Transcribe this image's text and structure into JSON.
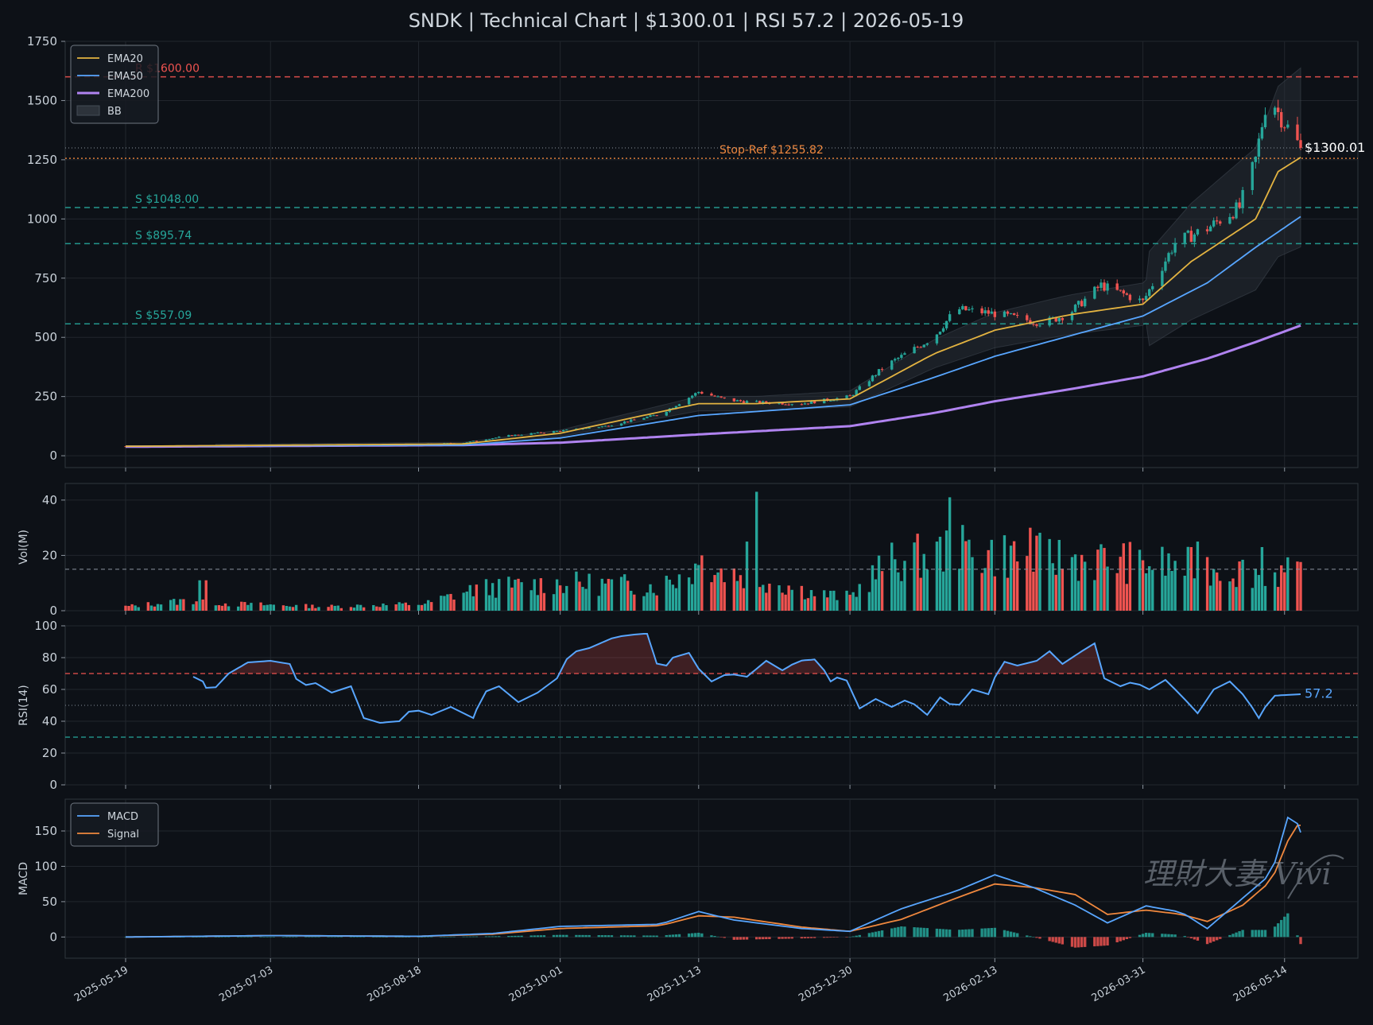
{
  "title": "SNDK | Technical Chart | $1300.01 | RSI 57.2 | 2026-05-19",
  "watermark": "理財大妻 Vivi",
  "colors": {
    "background": "#0d1117",
    "up": "#26a69a",
    "down": "#ef5350",
    "ema20": "#e3b341",
    "ema50": "#58a6ff",
    "ema200": "#b083f0",
    "macd": "#58a6ff",
    "signal": "#f0883e",
    "resistance": "#ef5350",
    "support": "#26a69a",
    "stop": "#f0883e"
  },
  "x_axis": {
    "start_date": "2025-05-19",
    "end_date": "2026-05-19",
    "tick_labels": [
      "2025-05-19",
      "2025-07-03",
      "2025-08-18",
      "2025-10-01",
      "2025-11-13",
      "2025-12-30",
      "2026-02-13",
      "2026-03-31",
      "2026-05-14"
    ]
  },
  "chart_data": [
    {
      "type": "candlestick",
      "panel": "price",
      "ylim": [
        -50,
        1750
      ],
      "yticks": [
        0,
        250,
        500,
        750,
        1000,
        1250,
        1500,
        1750
      ],
      "legend": [
        "EMA20",
        "EMA50",
        "EMA200",
        "BB"
      ],
      "legend_position": "top-left",
      "last_price_label": "$1300.01",
      "last_price": 1300.01,
      "levels": [
        {
          "label": "R $1600.00",
          "value": 1600.0,
          "kind": "resistance"
        },
        {
          "label": "Stop-Ref $1255.82",
          "value": 1255.82,
          "kind": "stop"
        },
        {
          "label": "S $1048.00",
          "value": 1048.0,
          "kind": "support"
        },
        {
          "label": "S $895.74",
          "value": 895.74,
          "kind": "support"
        },
        {
          "label": "S $557.09",
          "value": 557.09,
          "kind": "support"
        }
      ],
      "price_anchors": [
        [
          "2025-05-19",
          40
        ],
        [
          "2025-06-20",
          42
        ],
        [
          "2025-07-20",
          43
        ],
        [
          "2025-08-10",
          45
        ],
        [
          "2025-09-01",
          55
        ],
        [
          "2025-09-15",
          85
        ],
        [
          "2025-10-01",
          105
        ],
        [
          "2025-10-15",
          125
        ],
        [
          "2025-11-01",
          175
        ],
        [
          "2025-11-13",
          270
        ],
        [
          "2025-11-22",
          235
        ],
        [
          "2025-12-01",
          225
        ],
        [
          "2025-12-15",
          220
        ],
        [
          "2025-12-30",
          250
        ],
        [
          "2026-01-10",
          380
        ],
        [
          "2026-01-25",
          500
        ],
        [
          "2026-02-01",
          620
        ],
        [
          "2026-02-13",
          600
        ],
        [
          "2026-02-28",
          560
        ],
        [
          "2026-03-08",
          600
        ],
        [
          "2026-03-18",
          720
        ],
        [
          "2026-03-31",
          650
        ],
        [
          "2026-04-10",
          900
        ],
        [
          "2026-04-20",
          960
        ],
        [
          "2026-04-30",
          1050
        ],
        [
          "2026-05-05",
          1250
        ],
        [
          "2026-05-09",
          1550
        ],
        [
          "2026-05-12",
          1450
        ],
        [
          "2026-05-19",
          1300
        ]
      ],
      "ema20_anchors": [
        [
          "2025-05-19",
          40
        ],
        [
          "2025-09-01",
          50
        ],
        [
          "2025-10-01",
          95
        ],
        [
          "2025-11-13",
          220
        ],
        [
          "2025-12-01",
          220
        ],
        [
          "2025-12-30",
          240
        ],
        [
          "2026-01-25",
          430
        ],
        [
          "2026-02-13",
          530
        ],
        [
          "2026-03-08",
          595
        ],
        [
          "2026-03-31",
          640
        ],
        [
          "2026-04-15",
          820
        ],
        [
          "2026-05-05",
          1000
        ],
        [
          "2026-05-12",
          1200
        ],
        [
          "2026-05-19",
          1260
        ]
      ],
      "ema50_anchors": [
        [
          "2025-05-19",
          40
        ],
        [
          "2025-09-01",
          45
        ],
        [
          "2025-10-01",
          75
        ],
        [
          "2025-11-13",
          170
        ],
        [
          "2025-12-15",
          200
        ],
        [
          "2025-12-30",
          215
        ],
        [
          "2026-01-25",
          330
        ],
        [
          "2026-02-13",
          420
        ],
        [
          "2026-03-08",
          505
        ],
        [
          "2026-03-31",
          590
        ],
        [
          "2026-04-20",
          730
        ],
        [
          "2026-05-05",
          880
        ],
        [
          "2026-05-19",
          1010
        ]
      ],
      "ema200_anchors": [
        [
          "2025-05-19",
          38
        ],
        [
          "2025-09-01",
          45
        ],
        [
          "2025-10-01",
          55
        ],
        [
          "2025-11-13",
          90
        ],
        [
          "2025-12-30",
          125
        ],
        [
          "2026-01-25",
          180
        ],
        [
          "2026-02-13",
          230
        ],
        [
          "2026-03-08",
          280
        ],
        [
          "2026-03-31",
          335
        ],
        [
          "2026-04-20",
          410
        ],
        [
          "2026-05-05",
          480
        ],
        [
          "2026-05-19",
          550
        ]
      ]
    },
    {
      "type": "bar",
      "panel": "volume",
      "ylabel": "Vol(M)",
      "ylim": [
        0,
        46
      ],
      "yticks": [
        0,
        20,
        40
      ],
      "avg_line": 15,
      "volume_anchors": [
        [
          "2025-05-19",
          1.5
        ],
        [
          "2025-06-10",
          4
        ],
        [
          "2025-06-20",
          2.5
        ],
        [
          "2025-07-20",
          1.5
        ],
        [
          "2025-08-20",
          2.5
        ],
        [
          "2025-09-05",
          8
        ],
        [
          "2025-10-01",
          10
        ],
        [
          "2025-11-01",
          9
        ],
        [
          "2025-11-13",
          16
        ],
        [
          "2025-12-01",
          12
        ],
        [
          "2025-12-20",
          6
        ],
        [
          "2025-12-30",
          5
        ],
        [
          "2026-01-10",
          17
        ],
        [
          "2026-02-01",
          22
        ],
        [
          "2026-02-20",
          20
        ],
        [
          "2026-03-20",
          18
        ],
        [
          "2026-04-15",
          16
        ],
        [
          "2026-05-19",
          13
        ]
      ],
      "spikes": [
        [
          "2025-06-11",
          11
        ],
        [
          "2025-06-13",
          11
        ],
        [
          "2025-11-14",
          20
        ],
        [
          "2025-11-28",
          25
        ],
        [
          "2025-12-01",
          43
        ],
        [
          "2026-01-04",
          24
        ],
        [
          "2026-01-30",
          41
        ],
        [
          "2026-02-03",
          31
        ],
        [
          "2026-02-24",
          30
        ],
        [
          "2026-04-17",
          25
        ],
        [
          "2026-05-07",
          23
        ]
      ]
    },
    {
      "type": "line",
      "panel": "rsi",
      "ylabel": "RSI(14)",
      "ylim": [
        0,
        100
      ],
      "yticks": [
        0,
        20,
        40,
        60,
        80,
        100
      ],
      "overbought": 70,
      "midline": 50,
      "oversold": 30,
      "last_label": "57.2",
      "last_value": 57.2,
      "rsi_anchors": [
        [
          "2025-06-08",
          69
        ],
        [
          "2025-06-12",
          65
        ],
        [
          "2025-06-14",
          57
        ],
        [
          "2025-06-20",
          70
        ],
        [
          "2025-06-26",
          77
        ],
        [
          "2025-07-03",
          78
        ],
        [
          "2025-07-09",
          76
        ],
        [
          "2025-07-12",
          62
        ],
        [
          "2025-07-17",
          64
        ],
        [
          "2025-07-22",
          58
        ],
        [
          "2025-07-28",
          62
        ],
        [
          "2025-08-01",
          42
        ],
        [
          "2025-08-06",
          39
        ],
        [
          "2025-08-12",
          40
        ],
        [
          "2025-08-16",
          48
        ],
        [
          "2025-08-22",
          44
        ],
        [
          "2025-08-28",
          49
        ],
        [
          "2025-09-04",
          42
        ],
        [
          "2025-09-07",
          58
        ],
        [
          "2025-09-12",
          62
        ],
        [
          "2025-09-18",
          52
        ],
        [
          "2025-09-24",
          58
        ],
        [
          "2025-09-30",
          67
        ],
        [
          "2025-10-04",
          83
        ],
        [
          "2025-10-10",
          86
        ],
        [
          "2025-10-18",
          93
        ],
        [
          "2025-10-26",
          95
        ],
        [
          "2025-10-28",
          95
        ],
        [
          "2025-11-01",
          70
        ],
        [
          "2025-11-05",
          80
        ],
        [
          "2025-11-10",
          83
        ],
        [
          "2025-11-13",
          73
        ],
        [
          "2025-11-17",
          65
        ],
        [
          "2025-11-22",
          70
        ],
        [
          "2025-11-28",
          68
        ],
        [
          "2025-12-04",
          78
        ],
        [
          "2025-12-09",
          72
        ],
        [
          "2025-12-14",
          78
        ],
        [
          "2025-12-20",
          79
        ],
        [
          "2025-12-24",
          65
        ],
        [
          "2025-12-28",
          70
        ],
        [
          "2026-01-02",
          48
        ],
        [
          "2026-01-07",
          54
        ],
        [
          "2026-01-12",
          49
        ],
        [
          "2026-01-17",
          54
        ],
        [
          "2026-01-23",
          44
        ],
        [
          "2026-01-27",
          55
        ],
        [
          "2026-02-01",
          48
        ],
        [
          "2026-02-06",
          60
        ],
        [
          "2026-02-11",
          57
        ],
        [
          "2026-02-15",
          78
        ],
        [
          "2026-02-20",
          75
        ],
        [
          "2026-02-26",
          78
        ],
        [
          "2026-03-02",
          84
        ],
        [
          "2026-03-06",
          76
        ],
        [
          "2026-03-12",
          84
        ],
        [
          "2026-03-16",
          89
        ],
        [
          "2026-03-19",
          67
        ],
        [
          "2026-03-24",
          62
        ],
        [
          "2026-03-28",
          65
        ],
        [
          "2026-04-02",
          60
        ],
        [
          "2026-04-07",
          66
        ],
        [
          "2026-04-12",
          56
        ],
        [
          "2026-04-17",
          45
        ],
        [
          "2026-04-22",
          60
        ],
        [
          "2026-04-27",
          65
        ],
        [
          "2026-05-02",
          55
        ],
        [
          "2026-05-06",
          42
        ],
        [
          "2026-05-10",
          56
        ],
        [
          "2026-05-19",
          57
        ]
      ]
    },
    {
      "type": "line",
      "panel": "macd",
      "ylabel": "MACD",
      "ylim": [
        -30,
        195
      ],
      "yticks": [
        0,
        50,
        100,
        150
      ],
      "legend": [
        "MACD",
        "Signal"
      ],
      "legend_position": "top-left",
      "macd_anchors": [
        [
          "2025-05-19",
          0
        ],
        [
          "2025-07-03",
          2
        ],
        [
          "2025-08-18",
          1
        ],
        [
          "2025-09-10",
          5
        ],
        [
          "2025-10-01",
          15
        ],
        [
          "2025-11-01",
          18
        ],
        [
          "2025-11-13",
          36
        ],
        [
          "2025-11-24",
          24
        ],
        [
          "2025-12-15",
          12
        ],
        [
          "2025-12-30",
          8
        ],
        [
          "2026-01-15",
          40
        ],
        [
          "2026-02-01",
          65
        ],
        [
          "2026-02-13",
          88
        ],
        [
          "2026-02-25",
          70
        ],
        [
          "2026-03-10",
          45
        ],
        [
          "2026-03-20",
          20
        ],
        [
          "2026-04-01",
          44
        ],
        [
          "2026-04-12",
          35
        ],
        [
          "2026-04-20",
          12
        ],
        [
          "2026-05-01",
          55
        ],
        [
          "2026-05-10",
          90
        ],
        [
          "2026-05-16",
          185
        ],
        [
          "2026-05-19",
          148
        ]
      ],
      "signal_anchors": [
        [
          "2025-05-19",
          0
        ],
        [
          "2025-07-03",
          2
        ],
        [
          "2025-08-18",
          1
        ],
        [
          "2025-09-10",
          4
        ],
        [
          "2025-10-01",
          12
        ],
        [
          "2025-11-01",
          16
        ],
        [
          "2025-11-13",
          30
        ],
        [
          "2025-11-24",
          28
        ],
        [
          "2025-12-15",
          14
        ],
        [
          "2025-12-30",
          8
        ],
        [
          "2026-01-15",
          25
        ],
        [
          "2026-02-01",
          55
        ],
        [
          "2026-02-13",
          75
        ],
        [
          "2026-02-25",
          70
        ],
        [
          "2026-03-10",
          60
        ],
        [
          "2026-03-20",
          32
        ],
        [
          "2026-04-01",
          38
        ],
        [
          "2026-04-12",
          32
        ],
        [
          "2026-04-20",
          22
        ],
        [
          "2026-05-01",
          45
        ],
        [
          "2026-05-10",
          80
        ],
        [
          "2026-05-17",
          158
        ],
        [
          "2026-05-19",
          158
        ]
      ]
    }
  ]
}
